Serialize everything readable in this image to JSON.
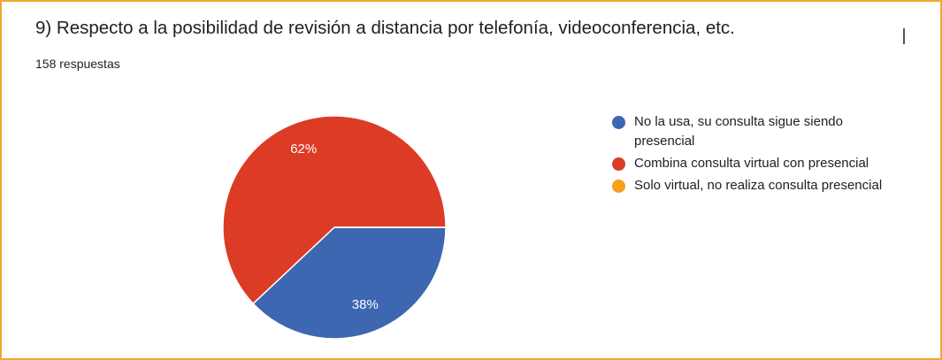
{
  "chart_data": {
    "type": "pie",
    "title": "9) Respecto a la posibilidad de revisión a distancia por telefonía, videoconferencia, etc.",
    "subtitle": "158 respuestas",
    "categories": [
      "No la usa, su consulta sigue siendo presencial",
      "Combina consulta virtual con presencial",
      "Solo virtual, no realiza consulta presencial"
    ],
    "values": [
      38,
      62,
      0
    ],
    "value_labels": [
      "38%",
      "62%",
      null
    ],
    "colors": [
      "#3e67b1",
      "#dc3b26",
      "#f4a11c"
    ],
    "legend": "right"
  }
}
